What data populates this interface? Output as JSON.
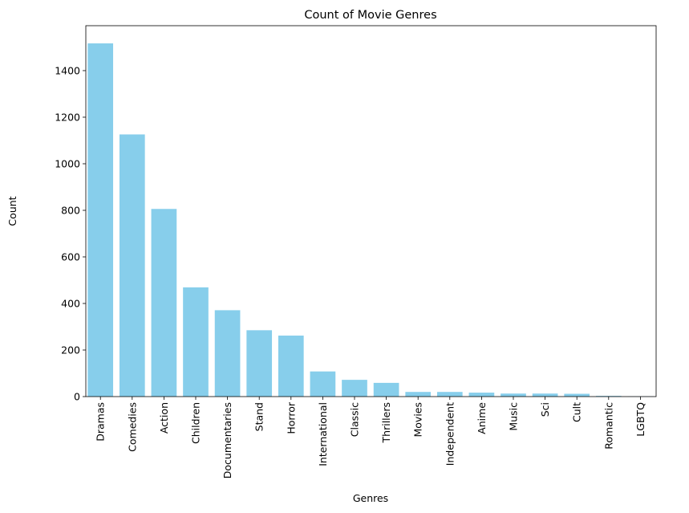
{
  "chart_data": {
    "type": "bar",
    "title": "Count of Movie Genres",
    "xlabel": "Genres",
    "ylabel": "Count",
    "categories": [
      "Dramas",
      "Comedies",
      "Action",
      "Children",
      "Documentaries",
      "Stand",
      "Horror",
      "International",
      "Classic",
      "Thrillers",
      "Movies",
      "Independent",
      "Anime",
      "Music",
      "Sci",
      "Cult",
      "Romantic",
      "LGBTQ"
    ],
    "values": [
      1517,
      1126,
      806,
      469,
      371,
      285,
      262,
      108,
      72,
      59,
      20,
      20,
      17,
      13,
      13,
      12,
      3,
      1
    ],
    "ylim": [
      0,
      1593
    ],
    "yticks": [
      0,
      200,
      400,
      600,
      800,
      1000,
      1200,
      1400
    ],
    "bar_color": "#87ceeb",
    "grid": false
  }
}
